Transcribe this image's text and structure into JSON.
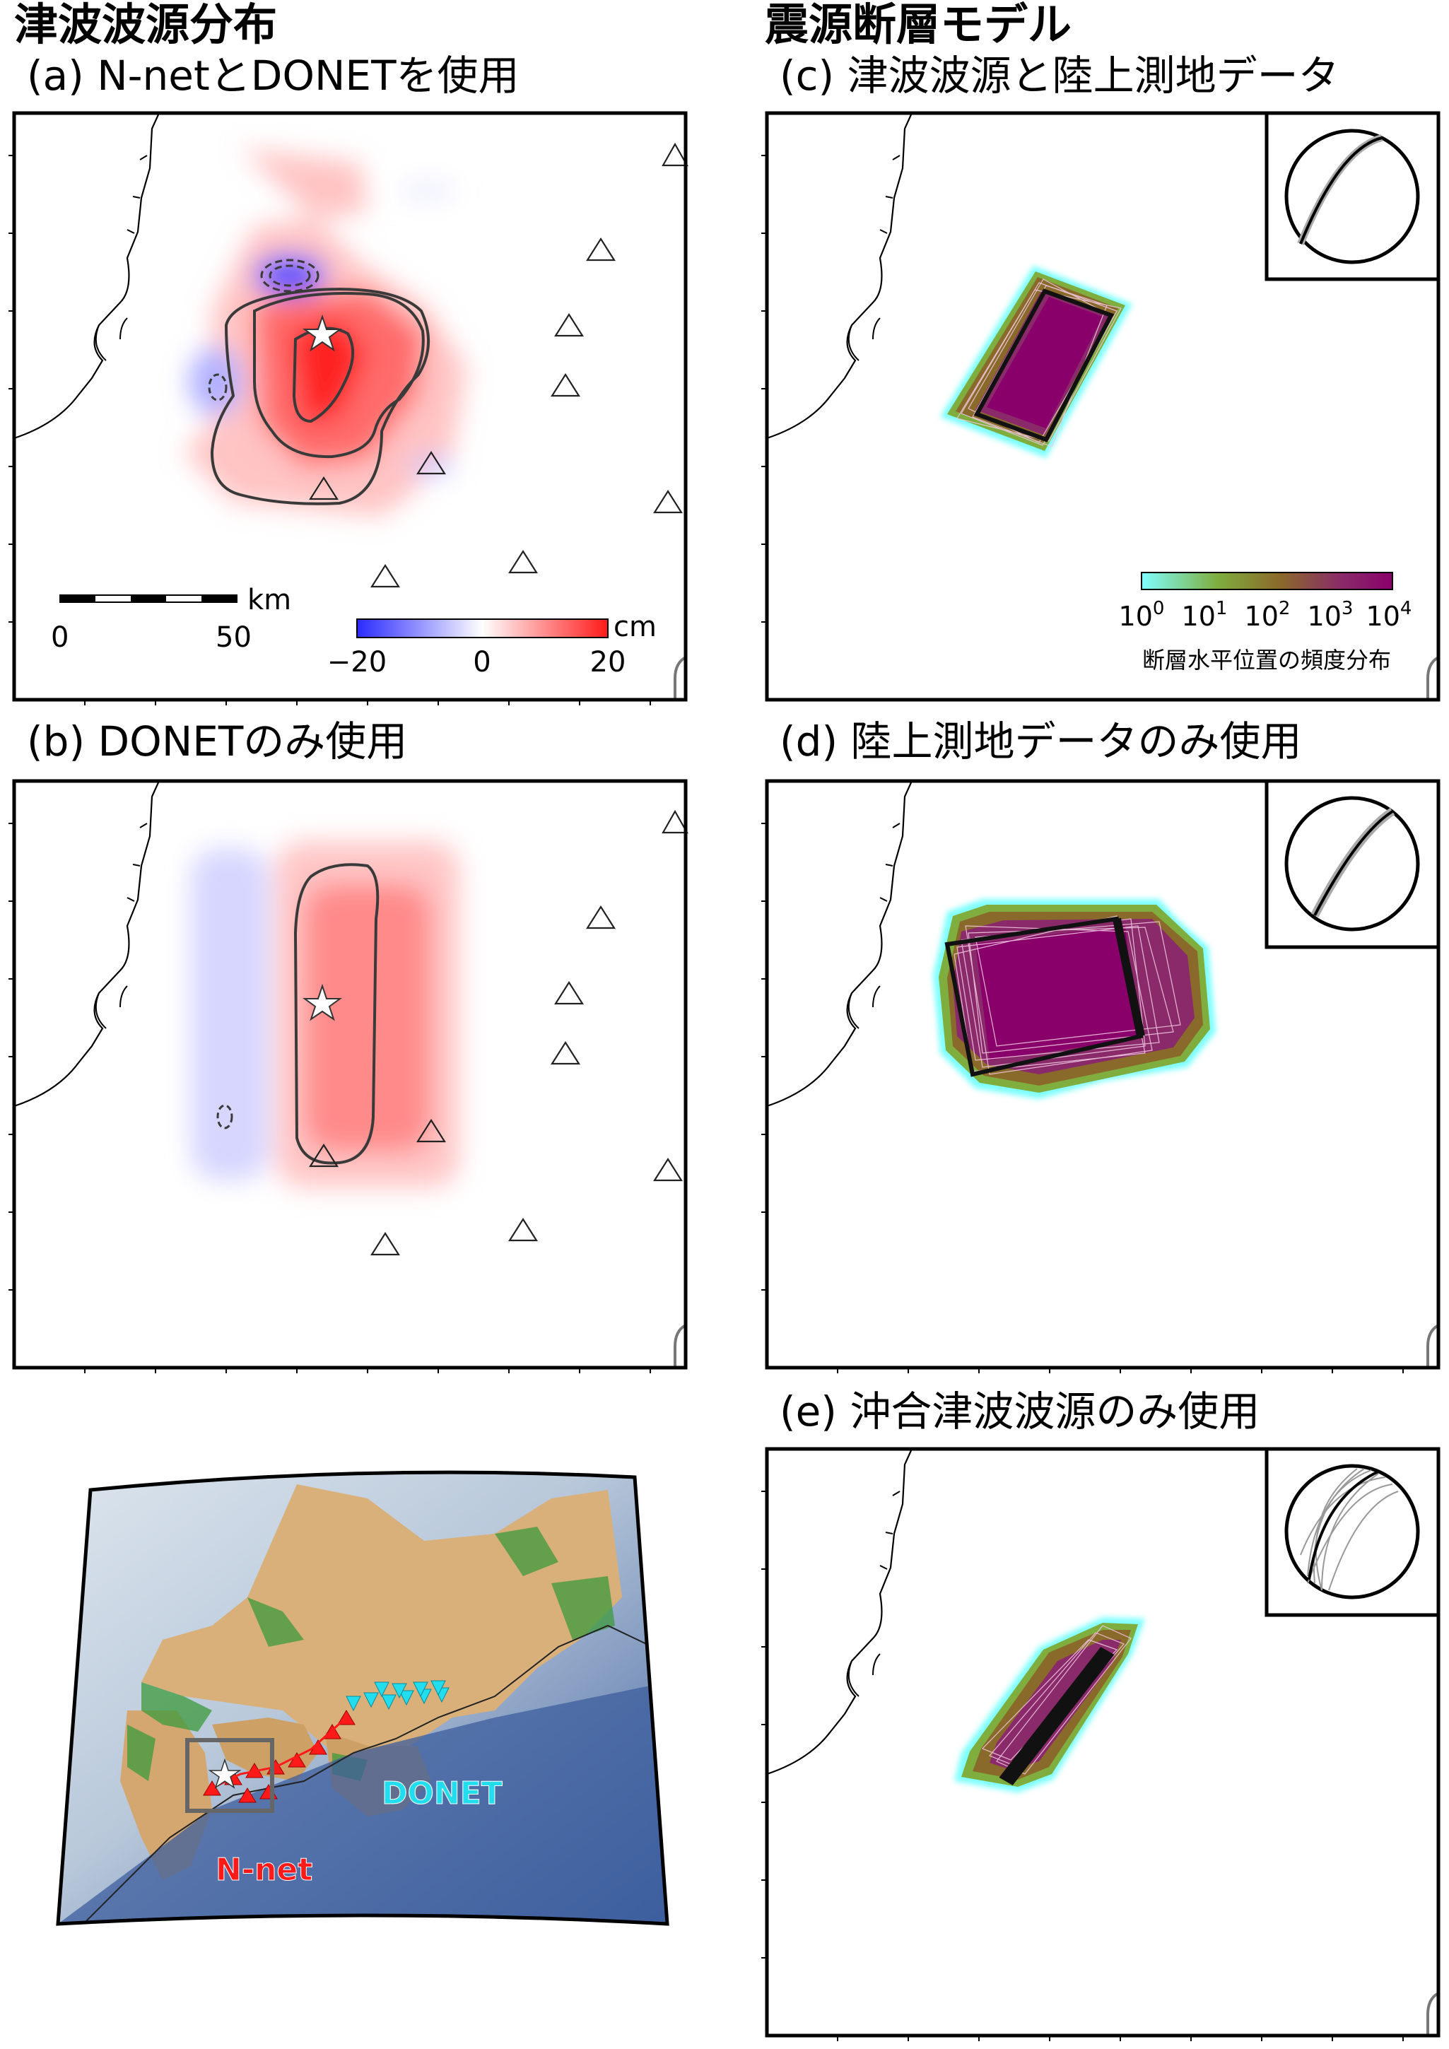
{
  "left_heading": "津波波源分布",
  "right_heading": "震源断層モデル",
  "panels": {
    "a": {
      "title": "(a) N-netとDONETを使用"
    },
    "b": {
      "title": "(b) DONETのみ使用"
    },
    "c": {
      "title": "(c) 津波波源と陸上測地データ"
    },
    "d": {
      "title": "(d) 陸上測地データのみ使用"
    },
    "e": {
      "title": "(e) 沖合津波波源のみ使用"
    }
  },
  "scalebar": {
    "unit": "km",
    "tick_start": "0",
    "tick_end": "50"
  },
  "tsunami_colorbar": {
    "unit": "cm",
    "ticks": [
      "−20",
      "0",
      "20"
    ],
    "range": [
      -20,
      20
    ],
    "colors": {
      "negative": "#2a2aff",
      "zero": "#ffffff",
      "positive": "#ff1a1a"
    }
  },
  "frequency_colorbar": {
    "caption": "断層水平位置の頻度分布",
    "ticks": [
      {
        "base": "10",
        "exp": "0"
      },
      {
        "base": "10",
        "exp": "1"
      },
      {
        "base": "10",
        "exp": "2"
      },
      {
        "base": "10",
        "exp": "3"
      },
      {
        "base": "10",
        "exp": "4"
      }
    ],
    "colors": [
      "#7fffff",
      "#7fae3f",
      "#8a6a2a",
      "#8a2a6a",
      "#8a006a"
    ]
  },
  "inset_map": {
    "network_labels": {
      "nnet": "N-net",
      "donet": "DONET"
    },
    "colors": {
      "nnet": "#ff1a1a",
      "donet": "#22ddee",
      "sea_deep": "#4466aa",
      "sea_shallow": "#c9d6e4",
      "land": "#d9b07a",
      "lowland": "#3c9a3c"
    }
  },
  "colors": {
    "frame": "#000000",
    "coast": "#000000",
    "contour": "#3a3a3a",
    "fault_fill": "#8a006a"
  }
}
